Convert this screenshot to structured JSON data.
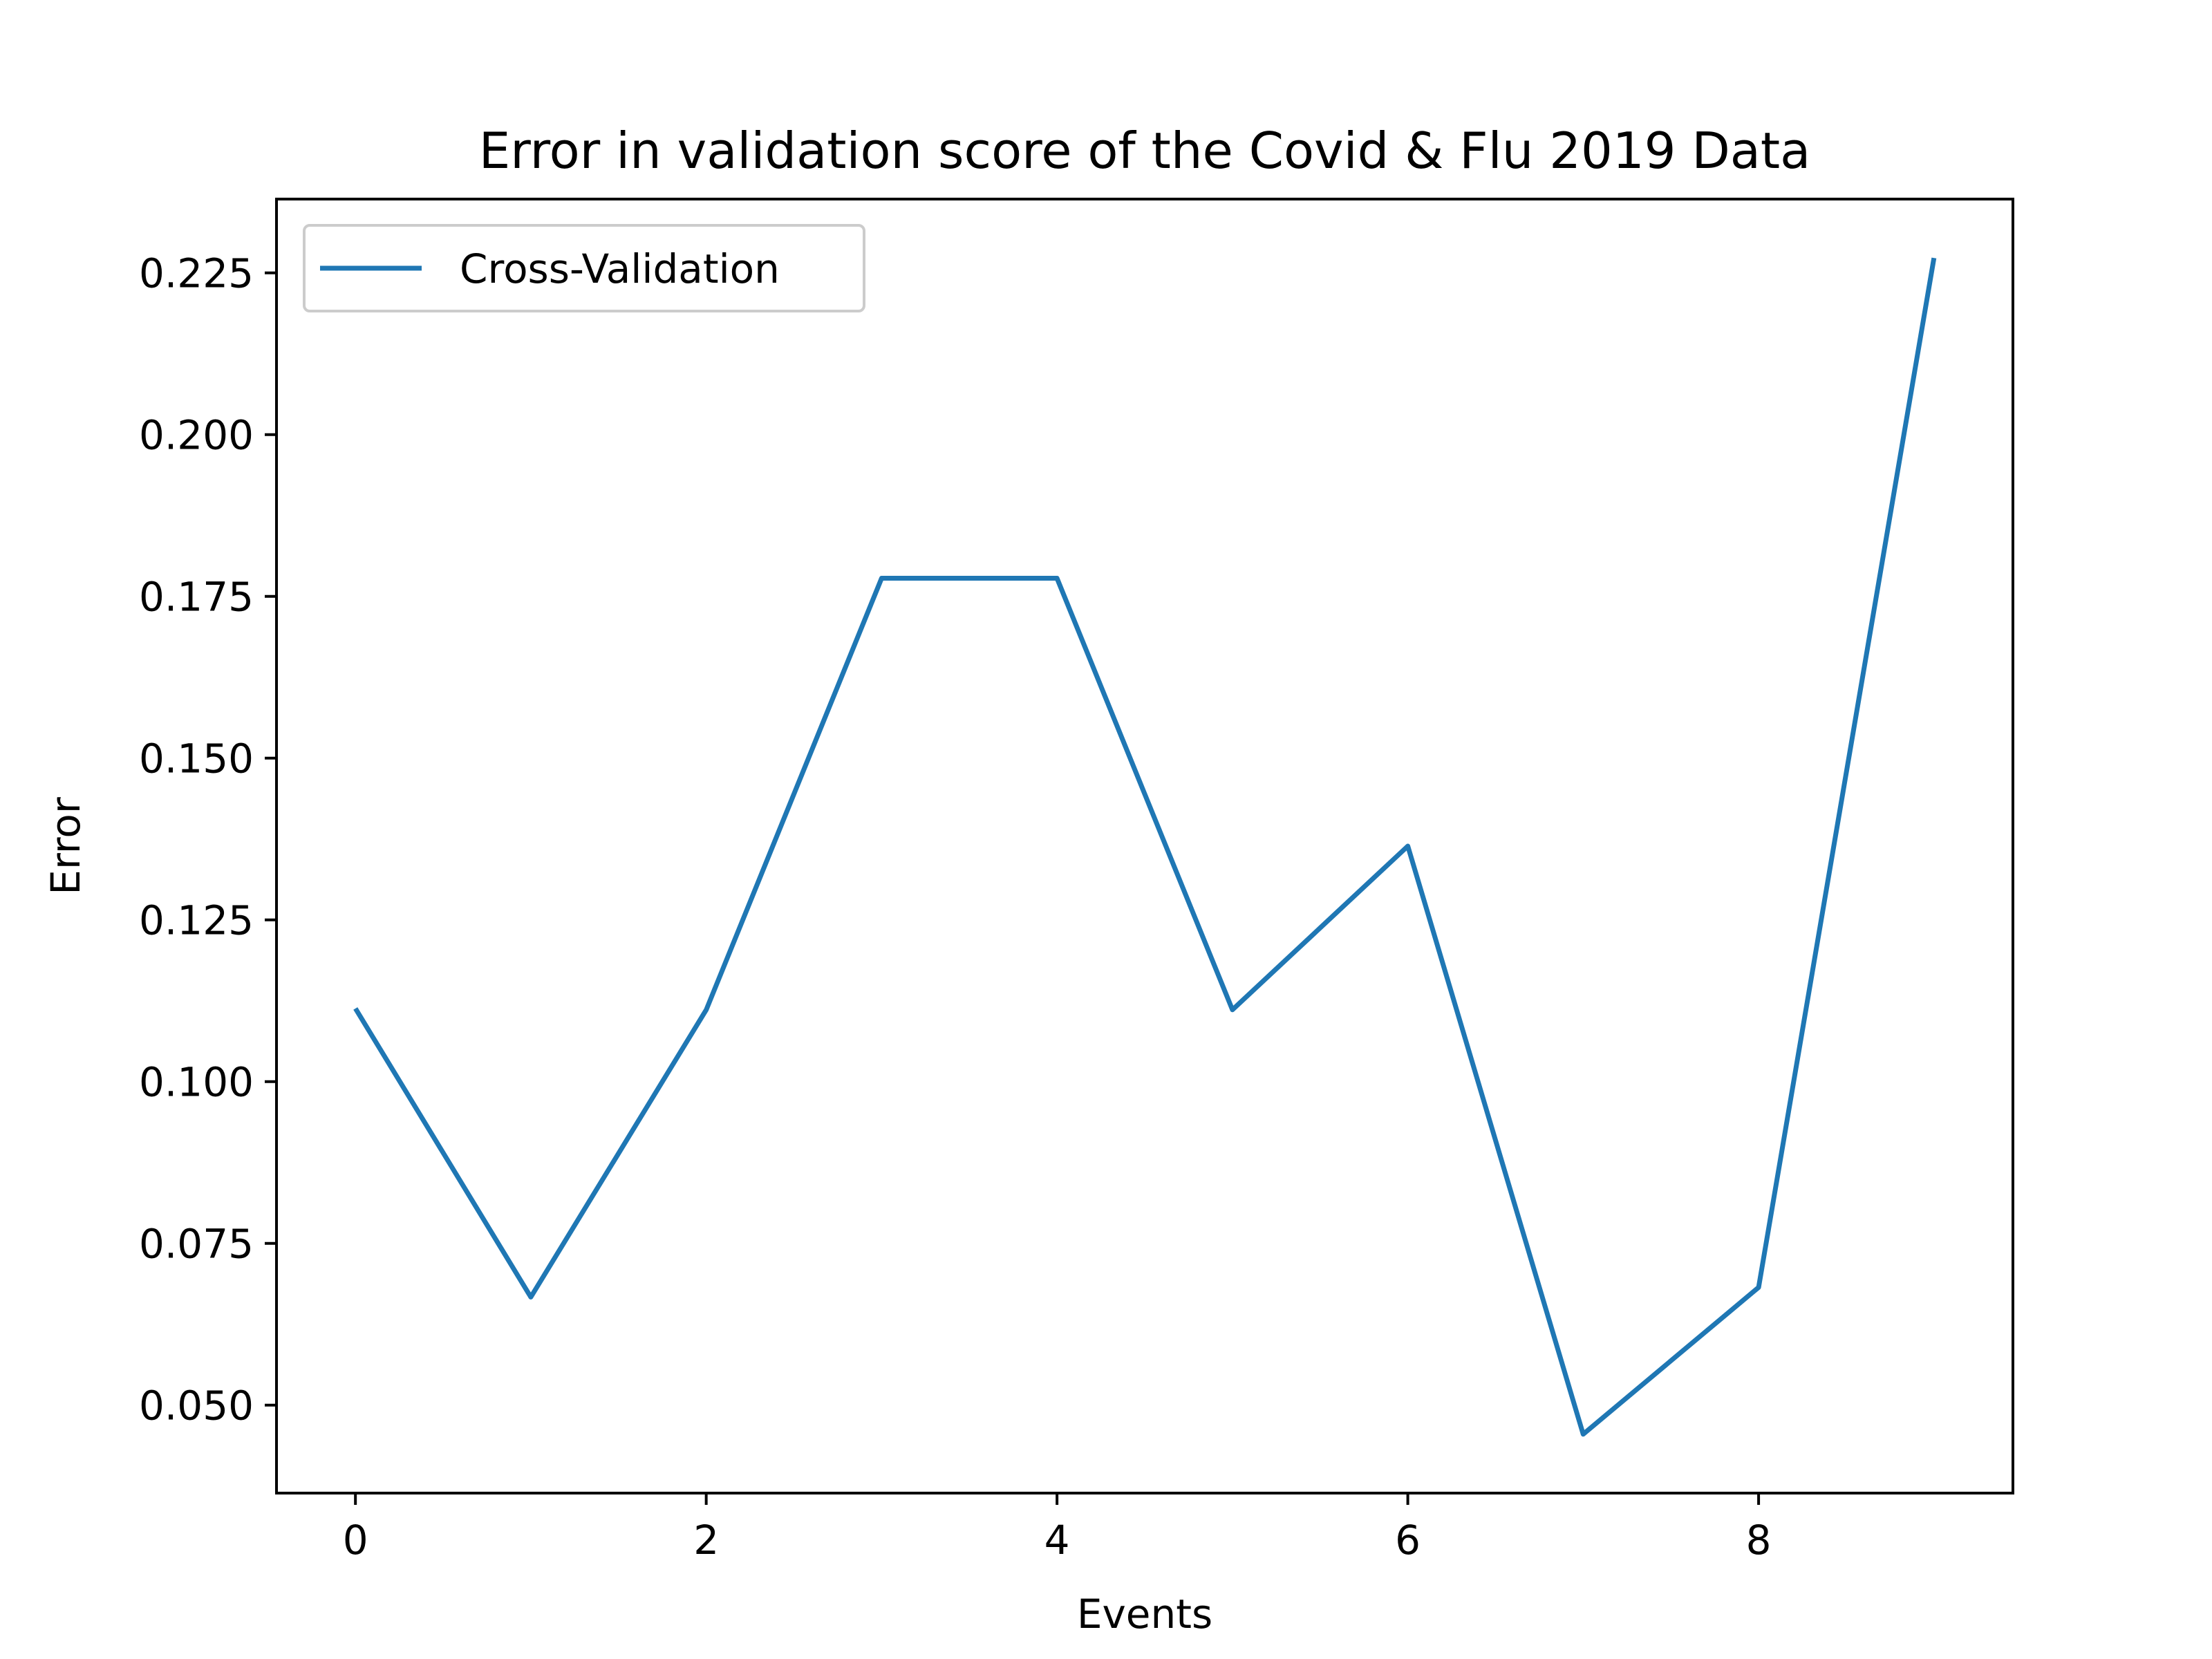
{
  "chart_data": {
    "type": "line",
    "title": "Error in validation score of the Covid & Flu 2019 Data",
    "xlabel": "Events",
    "ylabel": "Error",
    "x": [
      0,
      1,
      2,
      3,
      4,
      5,
      6,
      7,
      8,
      9
    ],
    "series": [
      {
        "name": "Cross-Validation",
        "color": "#1f77b4",
        "values": [
          0.1113,
          0.0667,
          0.1111,
          0.1778,
          0.1778,
          0.1111,
          0.1364,
          0.0455,
          0.0682,
          0.2273
        ]
      }
    ],
    "xlim": [
      -0.45,
      9.45
    ],
    "ylim": [
      0.0364,
      0.2364
    ],
    "xticks": [
      0,
      2,
      4,
      6,
      8
    ],
    "xtick_labels": [
      "0",
      "2",
      "4",
      "6",
      "8"
    ],
    "yticks": [
      0.05,
      0.075,
      0.1,
      0.125,
      0.15,
      0.175,
      0.2,
      0.225
    ],
    "ytick_labels": [
      "0.050",
      "0.075",
      "0.100",
      "0.125",
      "0.150",
      "0.175",
      "0.200",
      "0.225"
    ],
    "grid": false,
    "legend_position": "upper-left"
  }
}
